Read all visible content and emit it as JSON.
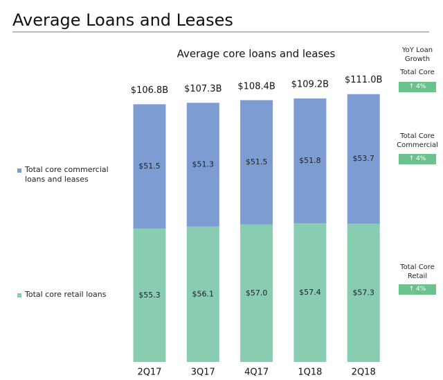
{
  "header": {
    "title": "Average Loans and Leases"
  },
  "chart_data": {
    "type": "stacked-bar",
    "title": "Average core loans and leases",
    "categories": [
      "2Q17",
      "3Q17",
      "4Q17",
      "1Q18",
      "2Q18"
    ],
    "series": [
      {
        "name": "Total core retail loans",
        "color": "#88cdb2",
        "values": [
          55.3,
          56.1,
          57.0,
          57.4,
          57.3
        ],
        "value_labels": [
          "$55.3",
          "$56.1",
          "$57.0",
          "$57.4",
          "$57.3"
        ]
      },
      {
        "name": "Total core commercial loans and leases",
        "color": "#7d9dd2",
        "values": [
          51.5,
          51.3,
          51.5,
          51.8,
          53.7
        ],
        "value_labels": [
          "$51.5",
          "$51.3",
          "$51.5",
          "$51.8",
          "$53.7"
        ]
      }
    ],
    "totals": {
      "values": [
        106.8,
        107.3,
        108.4,
        109.2,
        111.0
      ],
      "value_labels": [
        "$106.8B",
        "$107.3B",
        "$108.4B",
        "$109.2B",
        "$111.0B"
      ]
    },
    "growth": {
      "title": "YoY Loan Growth",
      "badge_color": "#6cc28f",
      "items": [
        {
          "name": "Total Core",
          "label": "↑ 4%"
        },
        {
          "name": "Total Core Commercial",
          "label": "↑ 4%"
        },
        {
          "name": "Total Core Retail",
          "label": "↑ 4%"
        }
      ]
    }
  }
}
